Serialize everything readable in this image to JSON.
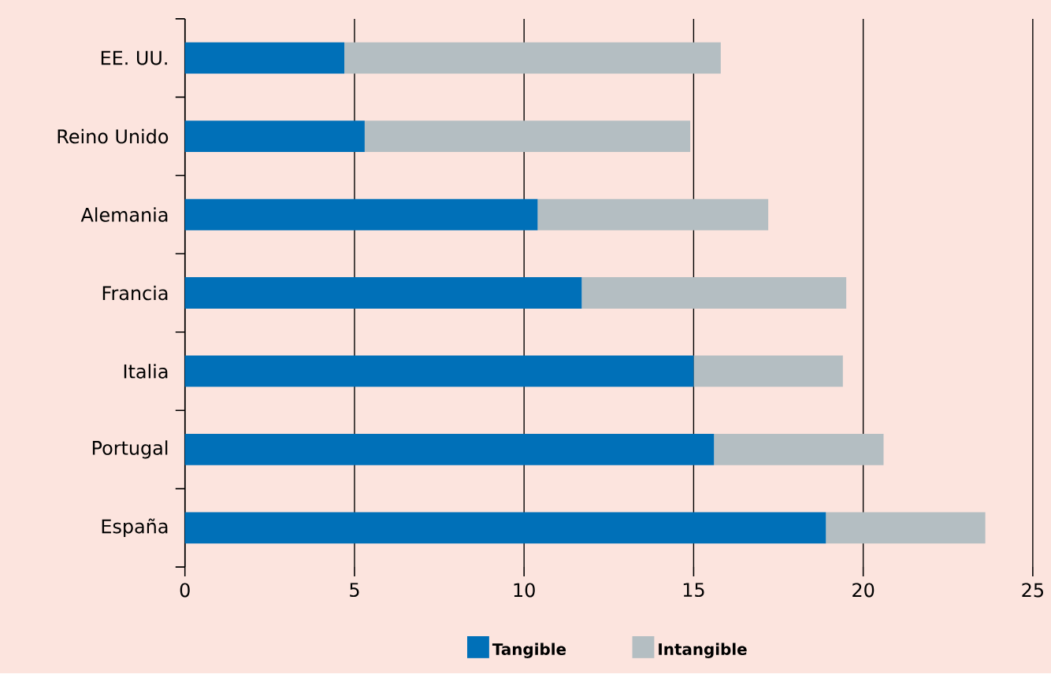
{
  "chart_data": {
    "type": "bar",
    "orientation": "horizontal",
    "stacked": true,
    "categories": [
      "EE. UU.",
      "Reino Unido",
      "Alemania",
      "Francia",
      "Italia",
      "Portugal",
      "España"
    ],
    "series": [
      {
        "name": "Tangible",
        "color": "#0070b8",
        "values": [
          4.7,
          5.3,
          10.4,
          11.7,
          15.0,
          15.6,
          18.9
        ]
      },
      {
        "name": "Intangible",
        "color": "#b4bec2",
        "values": [
          11.1,
          9.6,
          6.8,
          7.8,
          4.4,
          5.0,
          4.7
        ]
      }
    ],
    "xlim": [
      0,
      25
    ],
    "xticks": [
      0,
      5,
      10,
      15,
      20,
      25
    ],
    "grid": "x",
    "legend": "bottom"
  }
}
